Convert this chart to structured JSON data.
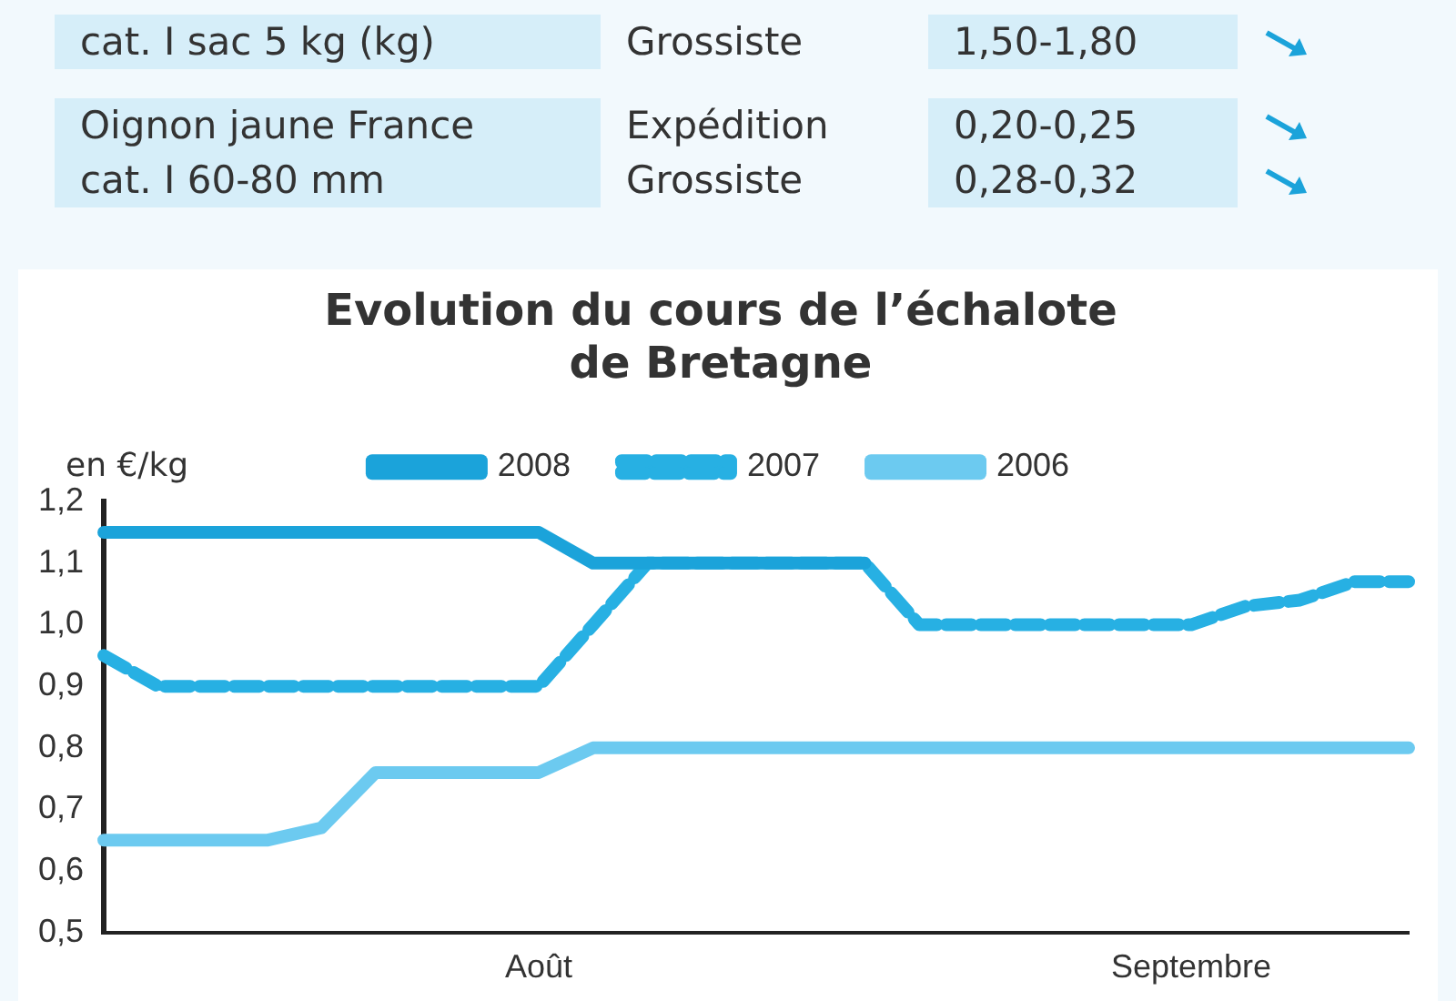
{
  "chart_data": {
    "type": "line",
    "title": "Evolution du cours de l’échalote\nde Bretagne",
    "ylabel": "en €/kg",
    "categories": [
      null,
      null,
      null,
      null,
      null,
      null,
      null,
      null,
      "Août",
      null,
      null,
      null,
      null,
      null,
      null,
      null,
      null,
      null,
      null,
      null,
      "Septembre",
      null,
      null,
      null,
      null
    ],
    "series": [
      {
        "name": "2008",
        "color": "#1ba3da",
        "line_style": "solid",
        "values": [
          1.15,
          1.15,
          1.15,
          1.15,
          1.15,
          1.15,
          1.15,
          1.15,
          1.15,
          1.1,
          1.1,
          1.1,
          1.1,
          1.1,
          1.1,
          null,
          null,
          null,
          null,
          null,
          null,
          null,
          null,
          null,
          null
        ]
      },
      {
        "name": "2007",
        "color": "#27b0e3",
        "line_style": "dashed",
        "values": [
          0.95,
          0.9,
          0.9,
          0.9,
          0.9,
          0.9,
          0.9,
          0.9,
          0.9,
          1.0,
          1.1,
          1.1,
          1.1,
          1.1,
          1.1,
          1.0,
          1.0,
          1.0,
          1.0,
          1.0,
          1.0,
          1.03,
          1.04,
          1.07,
          1.07
        ]
      },
      {
        "name": "2006",
        "color": "#6ccaf0",
        "line_style": "solid",
        "values": [
          0.65,
          0.65,
          0.65,
          0.65,
          0.67,
          0.76,
          0.76,
          0.76,
          0.76,
          0.8,
          0.8,
          0.8,
          0.8,
          0.8,
          0.8,
          0.8,
          0.8,
          0.8,
          0.8,
          0.8,
          0.8,
          0.8,
          0.8,
          0.8,
          0.8
        ]
      }
    ],
    "ylim": [
      0.5,
      1.2
    ],
    "yticks": [
      {
        "value": 0.5,
        "label": "0,5"
      },
      {
        "value": 0.6,
        "label": "0,6"
      },
      {
        "value": 0.7,
        "label": "0,7"
      },
      {
        "value": 0.8,
        "label": "0,8"
      },
      {
        "value": 0.9,
        "label": "0,9"
      },
      {
        "value": 1.0,
        "label": "1,0"
      },
      {
        "value": 1.1,
        "label": "1,1"
      },
      {
        "value": 1.2,
        "label": "1,2"
      }
    ],
    "grid": false,
    "legend": "top",
    "marker": "none",
    "annotations": [
      "cat. I sac 5 kg (kg)",
      "Grossiste",
      "1,50-1,80",
      "Oignon jaune France",
      "Expédition",
      "0,20-0,25",
      "cat. I 60-80 mm",
      "Grossiste",
      "0,28-0,32"
    ]
  }
}
